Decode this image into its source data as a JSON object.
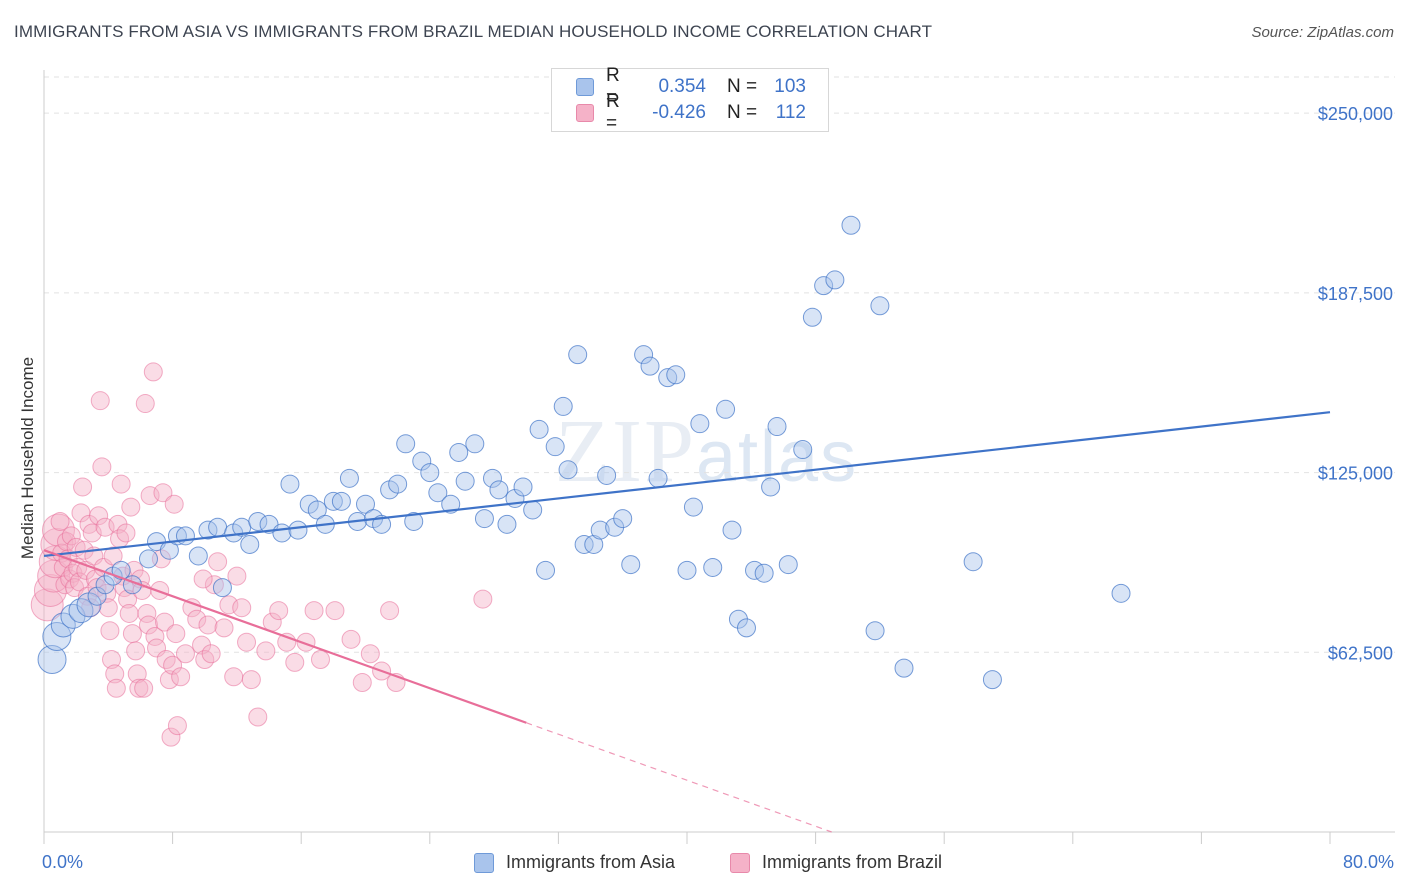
{
  "title": "IMMIGRANTS FROM ASIA VS IMMIGRANTS FROM BRAZIL MEDIAN HOUSEHOLD INCOME CORRELATION CHART",
  "source": "Source: ZipAtlas.com",
  "watermark": {
    "main": "ZIP",
    "sub": "atlas"
  },
  "colors": {
    "asia": "#3f73c8",
    "asia_fill": "#a9c4ec",
    "brazil": "#e86e99",
    "brazil_fill": "#f5b2c8",
    "tick": "#3f73c8"
  },
  "legend": {
    "asia": {
      "r_label": "R =",
      "r_value": "0.354",
      "n_label": "N =",
      "n_value": "103"
    },
    "brazil": {
      "r_label": "R =",
      "r_value": "-0.426",
      "n_label": "N =",
      "n_value": "112"
    }
  },
  "bottom_legend": {
    "asia": "Immigrants from Asia",
    "brazil": "Immigrants from Brazil"
  },
  "chart_data": {
    "type": "scatter",
    "title": "IMMIGRANTS FROM ASIA VS IMMIGRANTS FROM BRAZIL MEDIAN HOUSEHOLD INCOME CORRELATION CHART",
    "xlabel": "",
    "ylabel": "Median Household Income",
    "xlim": [
      0,
      80
    ],
    "ylim": [
      0,
      265000
    ],
    "x_tick_labels": [
      "0.0%",
      "80.0%"
    ],
    "y_ticks": [
      62500,
      125000,
      187500,
      250000
    ],
    "y_tick_labels": [
      "$62,500",
      "$125,000",
      "$187,500",
      "$250,000"
    ],
    "grid": true,
    "legend_position": "top-center",
    "series": [
      {
        "name": "Immigrants from Asia",
        "r": 0.354,
        "n": 103,
        "trend": {
          "x": [
            0,
            80
          ],
          "y": [
            96000,
            146000
          ]
        },
        "points": [
          [
            0.5,
            60000
          ],
          [
            0.8,
            68000
          ],
          [
            1.2,
            72000
          ],
          [
            1.8,
            75000
          ],
          [
            2.3,
            77000
          ],
          [
            2.8,
            79000
          ],
          [
            3.3,
            82000
          ],
          [
            3.8,
            86000
          ],
          [
            4.3,
            89000
          ],
          [
            4.8,
            91000
          ],
          [
            5.5,
            86000
          ],
          [
            6.5,
            95000
          ],
          [
            7.0,
            101000
          ],
          [
            7.8,
            98000
          ],
          [
            8.3,
            103000
          ],
          [
            8.8,
            103000
          ],
          [
            9.6,
            96000
          ],
          [
            10.2,
            105000
          ],
          [
            10.8,
            106000
          ],
          [
            11.1,
            85000
          ],
          [
            11.8,
            104000
          ],
          [
            12.3,
            106000
          ],
          [
            12.8,
            100000
          ],
          [
            13.3,
            108000
          ],
          [
            14.0,
            107000
          ],
          [
            14.8,
            104000
          ],
          [
            15.3,
            121000
          ],
          [
            15.8,
            105000
          ],
          [
            16.5,
            114000
          ],
          [
            17.0,
            112000
          ],
          [
            17.5,
            107000
          ],
          [
            18.0,
            115000
          ],
          [
            18.5,
            115000
          ],
          [
            19.0,
            123000
          ],
          [
            19.5,
            108000
          ],
          [
            20.0,
            114000
          ],
          [
            20.5,
            109000
          ],
          [
            21.0,
            107000
          ],
          [
            21.5,
            119000
          ],
          [
            22.0,
            121000
          ],
          [
            22.5,
            135000
          ],
          [
            23.0,
            108000
          ],
          [
            23.5,
            129000
          ],
          [
            24.0,
            125000
          ],
          [
            24.5,
            118000
          ],
          [
            25.3,
            114000
          ],
          [
            25.8,
            132000
          ],
          [
            26.2,
            122000
          ],
          [
            26.8,
            135000
          ],
          [
            27.4,
            109000
          ],
          [
            27.9,
            123000
          ],
          [
            28.3,
            119000
          ],
          [
            28.8,
            107000
          ],
          [
            29.3,
            116000
          ],
          [
            29.8,
            120000
          ],
          [
            30.4,
            112000
          ],
          [
            30.8,
            140000
          ],
          [
            31.2,
            91000
          ],
          [
            31.8,
            134000
          ],
          [
            32.3,
            148000
          ],
          [
            32.6,
            126000
          ],
          [
            33.2,
            166000
          ],
          [
            33.6,
            100000
          ],
          [
            34.2,
            100000
          ],
          [
            34.6,
            105000
          ],
          [
            35.0,
            124000
          ],
          [
            35.5,
            106000
          ],
          [
            36.0,
            109000
          ],
          [
            36.5,
            93000
          ],
          [
            37.3,
            166000
          ],
          [
            37.7,
            162000
          ],
          [
            38.2,
            123000
          ],
          [
            38.8,
            158000
          ],
          [
            39.3,
            159000
          ],
          [
            40.0,
            91000
          ],
          [
            40.4,
            113000
          ],
          [
            40.8,
            142000
          ],
          [
            41.6,
            92000
          ],
          [
            42.4,
            147000
          ],
          [
            42.8,
            105000
          ],
          [
            43.2,
            74000
          ],
          [
            43.7,
            71000
          ],
          [
            44.2,
            91000
          ],
          [
            44.8,
            90000
          ],
          [
            45.2,
            120000
          ],
          [
            45.6,
            141000
          ],
          [
            46.3,
            93000
          ],
          [
            47.2,
            133000
          ],
          [
            47.8,
            179000
          ],
          [
            48.5,
            190000
          ],
          [
            49.2,
            192000
          ],
          [
            50.2,
            211000
          ],
          [
            51.7,
            70000
          ],
          [
            52.0,
            183000
          ],
          [
            53.5,
            57000
          ],
          [
            57.8,
            94000
          ],
          [
            59.0,
            53000
          ],
          [
            67.0,
            83000
          ]
        ]
      },
      {
        "name": "Immigrants from Brazil",
        "r": -0.426,
        "n": 112,
        "trend": {
          "x": [
            0,
            30
          ],
          "y": [
            98000,
            38000
          ]
        },
        "trend_dashed": {
          "x": [
            30,
            80
          ],
          "y": [
            38000,
            -62000
          ]
        },
        "points": [
          [
            0.2,
            79000
          ],
          [
            0.4,
            84000
          ],
          [
            0.6,
            89000
          ],
          [
            0.7,
            94000
          ],
          [
            0.8,
            100000
          ],
          [
            0.9,
            105000
          ],
          [
            1.0,
            108000
          ],
          [
            1.1,
            97000
          ],
          [
            1.2,
            92000
          ],
          [
            1.3,
            86000
          ],
          [
            1.4,
            101000
          ],
          [
            1.5,
            95000
          ],
          [
            1.6,
            88000
          ],
          [
            1.7,
            103000
          ],
          [
            1.8,
            90000
          ],
          [
            1.9,
            85000
          ],
          [
            2.0,
            99000
          ],
          [
            2.1,
            92000
          ],
          [
            2.2,
            87000
          ],
          [
            2.3,
            111000
          ],
          [
            2.4,
            120000
          ],
          [
            2.5,
            98000
          ],
          [
            2.6,
            91000
          ],
          [
            2.7,
            82000
          ],
          [
            2.8,
            107000
          ],
          [
            2.9,
            78000
          ],
          [
            3.0,
            104000
          ],
          [
            3.1,
            96000
          ],
          [
            3.2,
            88000
          ],
          [
            3.3,
            85000
          ],
          [
            3.4,
            110000
          ],
          [
            3.5,
            150000
          ],
          [
            3.6,
            127000
          ],
          [
            3.7,
            92000
          ],
          [
            3.8,
            106000
          ],
          [
            3.9,
            83000
          ],
          [
            4.0,
            78000
          ],
          [
            4.1,
            70000
          ],
          [
            4.2,
            60000
          ],
          [
            4.3,
            96000
          ],
          [
            4.4,
            55000
          ],
          [
            4.5,
            50000
          ],
          [
            4.6,
            107000
          ],
          [
            4.7,
            102000
          ],
          [
            4.8,
            121000
          ],
          [
            4.9,
            89000
          ],
          [
            5.0,
            85000
          ],
          [
            5.1,
            104000
          ],
          [
            5.2,
            81000
          ],
          [
            5.3,
            76000
          ],
          [
            5.4,
            113000
          ],
          [
            5.5,
            69000
          ],
          [
            5.6,
            91000
          ],
          [
            5.7,
            63000
          ],
          [
            5.8,
            55000
          ],
          [
            5.9,
            50000
          ],
          [
            6.0,
            88000
          ],
          [
            6.1,
            84000
          ],
          [
            6.2,
            50000
          ],
          [
            6.3,
            149000
          ],
          [
            6.4,
            76000
          ],
          [
            6.5,
            72000
          ],
          [
            6.6,
            117000
          ],
          [
            6.8,
            160000
          ],
          [
            6.9,
            68000
          ],
          [
            7.0,
            64000
          ],
          [
            7.2,
            84000
          ],
          [
            7.3,
            95000
          ],
          [
            7.4,
            118000
          ],
          [
            7.5,
            73000
          ],
          [
            7.6,
            60000
          ],
          [
            7.8,
            53000
          ],
          [
            7.9,
            33000
          ],
          [
            8.0,
            58000
          ],
          [
            8.1,
            114000
          ],
          [
            8.2,
            69000
          ],
          [
            8.3,
            37000
          ],
          [
            8.5,
            54000
          ],
          [
            8.8,
            62000
          ],
          [
            9.2,
            78000
          ],
          [
            9.5,
            74000
          ],
          [
            9.8,
            65000
          ],
          [
            10.0,
            60000
          ],
          [
            10.2,
            72000
          ],
          [
            10.4,
            62000
          ],
          [
            10.6,
            86000
          ],
          [
            10.8,
            94000
          ],
          [
            11.2,
            71000
          ],
          [
            11.5,
            79000
          ],
          [
            11.8,
            54000
          ],
          [
            12.0,
            89000
          ],
          [
            12.3,
            78000
          ],
          [
            12.6,
            66000
          ],
          [
            12.9,
            53000
          ],
          [
            13.3,
            40000
          ],
          [
            13.8,
            63000
          ],
          [
            14.2,
            73000
          ],
          [
            14.6,
            77000
          ],
          [
            15.1,
            66000
          ],
          [
            15.6,
            59000
          ],
          [
            16.3,
            66000
          ],
          [
            16.8,
            77000
          ],
          [
            17.2,
            60000
          ],
          [
            18.1,
            77000
          ],
          [
            19.1,
            67000
          ],
          [
            19.8,
            52000
          ],
          [
            20.3,
            62000
          ],
          [
            21.0,
            56000
          ],
          [
            21.5,
            77000
          ],
          [
            21.9,
            52000
          ],
          [
            27.3,
            81000
          ],
          [
            9.9,
            88000
          ]
        ]
      }
    ]
  }
}
